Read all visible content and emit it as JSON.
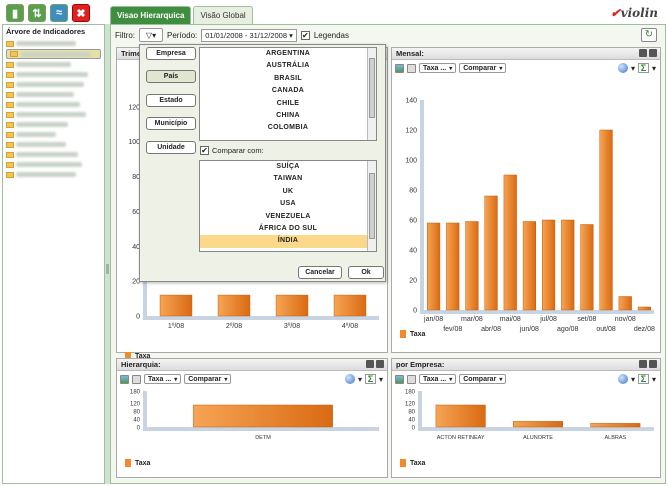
{
  "toolbar": {
    "btn1": "▮",
    "btn2": "⇅",
    "btn3": "≈",
    "btn4": "✖"
  },
  "left": {
    "title": "Árvore de Indicadores"
  },
  "tabs": [
    "Visao Hierarquica",
    "Visão Global"
  ],
  "logo": {
    "text": "violin",
    "mark": "✔"
  },
  "filter": {
    "label": "Filtro:",
    "period_label": "Período:",
    "period_value": "01/01/2008 - 31/12/2008",
    "legend_label": "Legendas",
    "legend_checked": "✔"
  },
  "panels": {
    "trimestral": {
      "title": "Trime",
      "legend": "Taxa",
      "quarters": [
        "1º/08",
        "2º/08",
        "3º/08",
        "4º/08"
      ]
    },
    "mensal": {
      "title": "Mensal:",
      "measure": "Taxa ...",
      "compare": "Comparar",
      "legend": "Taxa"
    },
    "hierarquia": {
      "title": "Hierarquia:",
      "measure": "Taxa ...",
      "compare": "Comparar",
      "legend": "Taxa"
    },
    "empresa": {
      "title": "por Empresa:",
      "measure": "Taxa ...",
      "compare": "Comparar",
      "legend": "Taxa"
    }
  },
  "popup": {
    "buttons": [
      "Empresa",
      "País",
      "Estado",
      "Município",
      "Unidade"
    ],
    "countries": [
      "ARGENTINA",
      "AUSTRÁLIA",
      "BRASIL",
      "CANADA",
      "CHILE",
      "CHINA",
      "COLOMBIA"
    ],
    "compare_label": "Comparar com:",
    "compare_checked": "✔",
    "compare_list": [
      "SUÍÇA",
      "TAIWAN",
      "UK",
      "USA",
      "VENEZUELA",
      "ÁFRICA DO SUL",
      "ÍNDIA"
    ],
    "cancel": "Cancelar",
    "ok": "Ok"
  },
  "chart_data": [
    {
      "type": "bar",
      "title": "Mensal:",
      "categories": [
        "jan/08",
        "fev/08",
        "mar/08",
        "abr/08",
        "mai/08",
        "jun/08",
        "jul/08",
        "ago/08",
        "set/08",
        "out/08",
        "nov/08",
        "dez/08"
      ],
      "series": [
        {
          "name": "Taxa",
          "values": [
            58,
            58,
            59,
            76,
            90,
            59,
            60,
            60,
            57,
            120,
            9,
            2
          ]
        }
      ],
      "ylim": [
        0,
        140
      ],
      "yticks": [
        0,
        20,
        40,
        60,
        80,
        100,
        120,
        140
      ]
    },
    {
      "type": "bar",
      "title": "Trime",
      "categories": [
        "1º/08",
        "2º/08",
        "3º/08",
        "4º/08"
      ],
      "series": [
        {
          "name": "Taxa",
          "values": [
            12,
            12,
            12,
            12
          ]
        }
      ],
      "ylim": [
        0,
        140
      ],
      "yticks": [
        0,
        20,
        40,
        60,
        80,
        100,
        120
      ]
    },
    {
      "type": "bar",
      "title": "Hierarquia:",
      "categories": [
        "DETM"
      ],
      "series": [
        {
          "name": "Taxa",
          "values": [
            110
          ]
        }
      ],
      "ylim": [
        0,
        180
      ],
      "yticks": [
        0,
        40,
        80,
        120,
        180
      ]
    },
    {
      "type": "bar",
      "title": "por Empresa:",
      "categories": [
        "ACTON RETINEAY",
        "ALUNORTE",
        "ALBRAS"
      ],
      "series": [
        {
          "name": "Taxa",
          "values": [
            110,
            28,
            18
          ]
        }
      ],
      "ylim": [
        0,
        180
      ],
      "yticks": [
        0,
        40,
        80,
        120,
        180
      ]
    }
  ]
}
